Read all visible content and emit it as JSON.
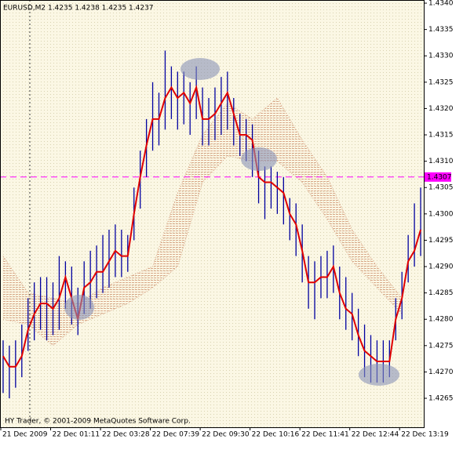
{
  "chart_data": {
    "type": "ohlc",
    "header": "EURUSD,M2  1.4235 1.4238 1.4235 1.4237",
    "footer": "HY Trader, © 2001-2009 MetaQuotes Software Corp.",
    "current_price": 1.4307,
    "current_color": "#ff00ff",
    "ylim": [
      1.42595,
      1.43406
    ],
    "yticks": [
      1.4265,
      {
        "value": 1.427,
        "label": "1.4270"
      },
      1.4275,
      {
        "value": 1.428,
        "label": "1.4280"
      },
      1.4285,
      {
        "value": 1.429,
        "label": "1.4290"
      },
      1.4295,
      {
        "value": 1.43,
        "label": "1.4300"
      },
      1.4305,
      {
        "value": 1.431,
        "label": "1.4310"
      },
      1.4315,
      {
        "value": 1.432,
        "label": "1.4320"
      },
      1.4325,
      {
        "value": 1.433,
        "label": "1.4330"
      },
      1.4335,
      {
        "value": 1.434,
        "label": "1.4340"
      }
    ],
    "categories": [
      "21 Dec 2009",
      null,
      null,
      null,
      null,
      null,
      null,
      null,
      "22 Dec 01:11",
      null,
      null,
      null,
      null,
      null,
      null,
      null,
      "22 Dec 03:28",
      null,
      null,
      null,
      null,
      null,
      null,
      null,
      "22 Dec 07:39",
      null,
      null,
      null,
      null,
      null,
      null,
      null,
      "22 Dec 09:30",
      null,
      null,
      null,
      null,
      null,
      null,
      null,
      "22 Dec 10:16",
      null,
      null,
      null,
      null,
      null,
      null,
      null,
      "22 Dec 11:41",
      null,
      null,
      null,
      null,
      null,
      null,
      null,
      "22 Dec 12:44",
      null,
      null,
      null,
      null,
      null,
      null,
      null,
      "22 Dec 13:19",
      null,
      null,
      null
    ],
    "bars": {
      "color": "#0000a0",
      "high": [
        1.4276,
        1.4275,
        1.4276,
        1.4279,
        1.4284,
        1.4287,
        1.4288,
        1.4288,
        1.4287,
        1.4292,
        1.4291,
        1.429,
        1.4286,
        1.4291,
        1.4293,
        1.4294,
        1.4296,
        1.4297,
        1.4298,
        1.4297,
        1.4296,
        1.4305,
        1.4312,
        1.4318,
        1.4325,
        1.4323,
        1.4331,
        1.4328,
        1.4327,
        1.4327,
        1.4325,
        1.4328,
        1.4324,
        1.4322,
        1.4324,
        1.4326,
        1.4327,
        1.4322,
        1.4319,
        1.4318,
        1.4317,
        1.4312,
        1.4309,
        1.4309,
        1.4308,
        1.4307,
        1.4303,
        1.4302,
        1.4298,
        1.4292,
        1.4291,
        1.4292,
        1.4293,
        1.4294,
        1.429,
        1.4288,
        1.4285,
        1.4282,
        1.4279,
        1.4277,
        1.4276,
        1.4276,
        1.4276,
        1.4284,
        1.4289,
        1.4296,
        1.4302,
        1.4305
      ],
      "low": [
        1.4266,
        1.4265,
        1.4267,
        1.4269,
        1.4274,
        1.4276,
        1.4278,
        1.4276,
        1.4277,
        1.4278,
        1.4282,
        1.4279,
        1.4277,
        1.4281,
        1.4282,
        1.4284,
        1.4285,
        1.4286,
        1.4288,
        1.4288,
        1.4289,
        1.4295,
        1.4301,
        1.4307,
        1.4312,
        1.4313,
        1.4316,
        1.4318,
        1.4316,
        1.4317,
        1.4315,
        1.4318,
        1.4313,
        1.4313,
        1.4314,
        1.4315,
        1.4316,
        1.4313,
        1.4311,
        1.431,
        1.4307,
        1.4302,
        1.4299,
        1.4301,
        1.43,
        1.4298,
        1.4295,
        1.4292,
        1.4287,
        1.4282,
        1.428,
        1.4284,
        1.4284,
        1.4285,
        1.428,
        1.4278,
        1.4276,
        1.4273,
        1.4269,
        1.4268,
        1.4268,
        1.4268,
        1.4269,
        1.4276,
        1.428,
        1.4287,
        1.429,
        1.4292
      ]
    },
    "line": {
      "color": "#e00000",
      "values": [
        1.4273,
        1.4271,
        1.4271,
        1.4273,
        1.4278,
        1.4281,
        1.4283,
        1.4283,
        1.4282,
        1.4284,
        1.4288,
        1.4284,
        1.428,
        1.4286,
        1.4287,
        1.4289,
        1.4289,
        1.4291,
        1.4293,
        1.4292,
        1.4292,
        1.43,
        1.4307,
        1.4313,
        1.4318,
        1.4318,
        1.4322,
        1.4324,
        1.4322,
        1.4323,
        1.4321,
        1.4324,
        1.4318,
        1.4318,
        1.4319,
        1.4321,
        1.4323,
        1.4319,
        1.4315,
        1.4315,
        1.4314,
        1.4307,
        1.4306,
        1.4306,
        1.4305,
        1.4304,
        1.43,
        1.4298,
        1.4293,
        1.4287,
        1.4287,
        1.4288,
        1.4288,
        1.429,
        1.4285,
        1.4282,
        1.4281,
        1.4277,
        1.4274,
        1.4273,
        1.4272,
        1.4272,
        1.4272,
        1.428,
        1.4284,
        1.4291,
        1.4293,
        1.4297
      ]
    },
    "cloud": {
      "color": "#d9a98a",
      "upper": [
        1.4292,
        1.4285,
        1.4284,
        1.4283,
        1.4286,
        1.4288,
        1.429,
        1.4304,
        1.4315,
        1.4321,
        1.4318,
        1.4322,
        1.4314,
        1.4307,
        1.4297,
        1.429,
        1.4284
      ],
      "lower": [
        1.428,
        1.4279,
        1.4275,
        1.4279,
        1.4281,
        1.4283,
        1.4286,
        1.429,
        1.4306,
        1.4311,
        1.431,
        1.431,
        1.4306,
        1.4299,
        1.4291,
        1.4286,
        1.4281
      ]
    }
  }
}
